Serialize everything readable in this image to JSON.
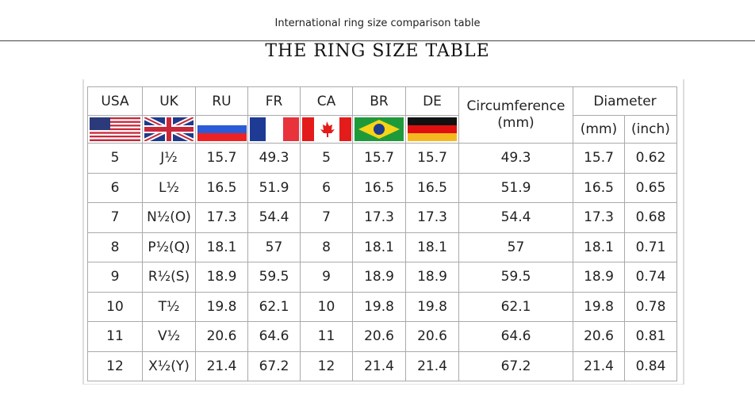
{
  "header": {
    "caption": "International ring size comparison table",
    "title": "THE RING SIZE TABLE"
  },
  "table": {
    "columns": [
      "USA",
      "UK",
      "RU",
      "FR",
      "CA",
      "BR",
      "DE"
    ],
    "flags": [
      "usa-flag-icon",
      "uk-flag-icon",
      "russia-flag-icon",
      "france-flag-icon",
      "canada-flag-icon",
      "brazil-flag-icon",
      "germany-flag-icon"
    ],
    "circumference": "Circumference (mm)",
    "diameter": "Diameter",
    "diameter_mm": "(mm)",
    "diameter_inch": "(inch)",
    "rows": [
      [
        "5",
        "J½",
        "15.7",
        "49.3",
        "5",
        "15.7",
        "15.7",
        "49.3",
        "15.7",
        "0.62"
      ],
      [
        "6",
        "L½",
        "16.5",
        "51.9",
        "6",
        "16.5",
        "16.5",
        "51.9",
        "16.5",
        "0.65"
      ],
      [
        "7",
        "N½(O)",
        "17.3",
        "54.4",
        "7",
        "17.3",
        "17.3",
        "54.4",
        "17.3",
        "0.68"
      ],
      [
        "8",
        "P½(Q)",
        "18.1",
        "57",
        "8",
        "18.1",
        "18.1",
        "57",
        "18.1",
        "0.71"
      ],
      [
        "9",
        "R½(S)",
        "18.9",
        "59.5",
        "9",
        "18.9",
        "18.9",
        "59.5",
        "18.9",
        "0.74"
      ],
      [
        "10",
        "T½",
        "19.8",
        "62.1",
        "10",
        "19.8",
        "19.8",
        "62.1",
        "19.8",
        "0.78"
      ],
      [
        "11",
        "V½",
        "20.6",
        "64.6",
        "11",
        "20.6",
        "20.6",
        "64.6",
        "20.6",
        "0.81"
      ],
      [
        "12",
        "X½(Y)",
        "21.4",
        "67.2",
        "12",
        "21.4",
        "21.4",
        "67.2",
        "21.4",
        "0.84"
      ]
    ]
  }
}
